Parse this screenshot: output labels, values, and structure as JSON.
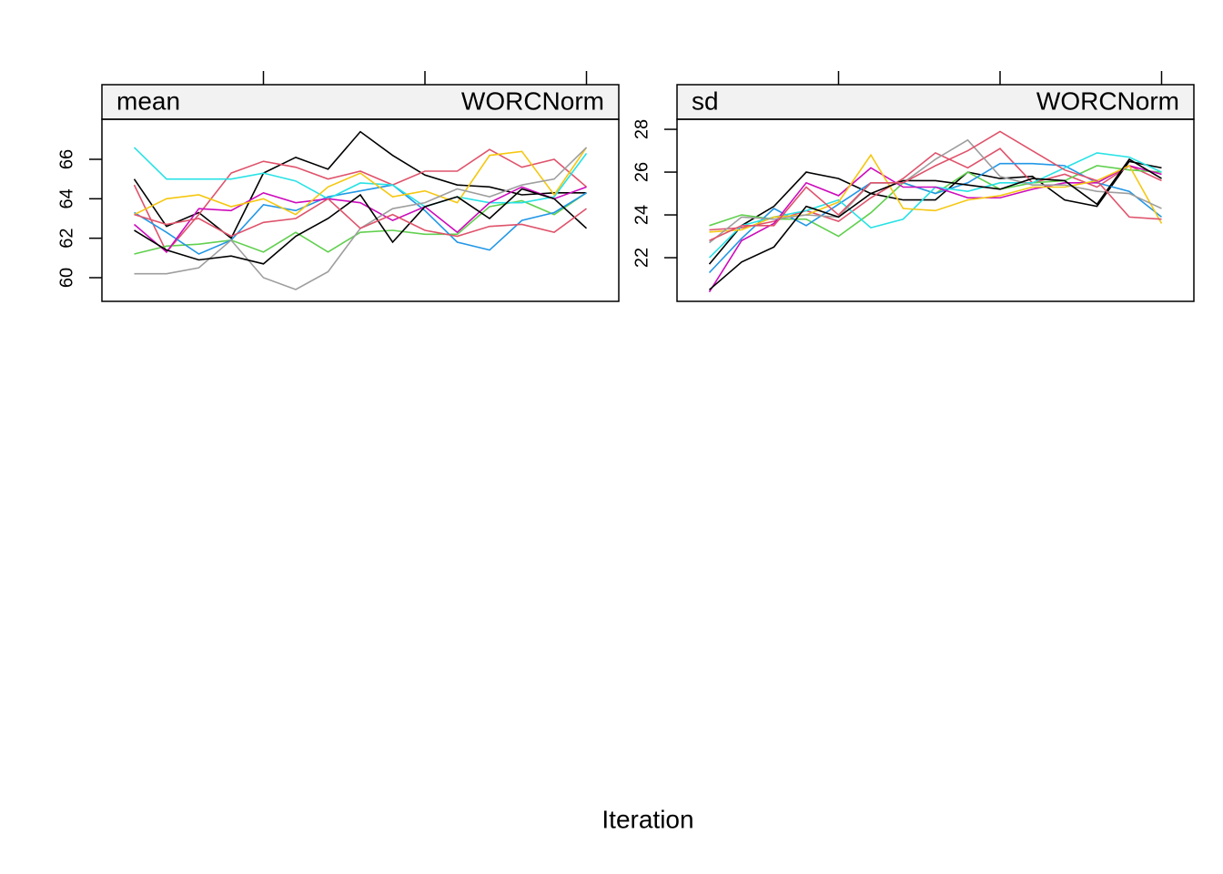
{
  "chart_data": [
    {
      "type": "line",
      "title": "mean",
      "subtitle": "WORCNorm",
      "xlabel": "Iteration",
      "x": [
        1,
        2,
        3,
        4,
        5,
        6,
        7,
        8,
        9,
        10,
        11,
        12,
        13,
        14,
        15
      ],
      "xlim": [
        0,
        16
      ],
      "xticks": [
        5,
        10,
        15
      ],
      "ylim": [
        58.8,
        68.03
      ],
      "yticks": [
        60,
        62,
        64,
        66
      ],
      "series": [
        {
          "color": "#000000",
          "values": [
            65.0,
            62.6,
            63.3,
            62.0,
            65.3,
            66.1,
            65.5,
            67.4,
            66.2,
            65.2,
            64.7,
            64.6,
            64.2,
            64.3,
            64.3
          ]
        },
        {
          "color": "#DF536B",
          "values": [
            64.7,
            61.3,
            63.2,
            65.3,
            65.9,
            65.6,
            65.0,
            65.4,
            64.7,
            65.4,
            65.4,
            66.5,
            65.6,
            66.0,
            64.6
          ]
        },
        {
          "color": "#61D04F",
          "values": [
            61.2,
            61.6,
            61.7,
            61.9,
            61.3,
            62.3,
            61.3,
            62.3,
            62.4,
            62.2,
            62.2,
            63.6,
            63.9,
            63.2,
            64.3
          ]
        },
        {
          "color": "#2297E6",
          "values": [
            63.3,
            62.3,
            61.2,
            61.9,
            63.7,
            63.4,
            64.1,
            64.4,
            64.7,
            63.4,
            61.8,
            61.4,
            62.9,
            63.3,
            64.3
          ]
        },
        {
          "color": "#28E2E5",
          "values": [
            66.6,
            65.0,
            65.0,
            65.0,
            65.3,
            64.9,
            64.0,
            64.8,
            64.7,
            63.6,
            64.1,
            63.8,
            63.8,
            64.1,
            66.3
          ]
        },
        {
          "color": "#CD0BBC",
          "values": [
            62.7,
            61.3,
            63.5,
            63.4,
            64.3,
            63.8,
            64.0,
            63.8,
            62.9,
            63.6,
            62.3,
            63.8,
            64.6,
            64.0,
            64.6
          ]
        },
        {
          "color": "#F5C710",
          "values": [
            63.2,
            64.0,
            64.2,
            63.6,
            64.0,
            63.2,
            64.6,
            65.3,
            64.1,
            64.4,
            63.8,
            66.2,
            66.4,
            64.2,
            66.6
          ]
        },
        {
          "color": "#9E9E9E",
          "values": [
            60.2,
            60.2,
            60.5,
            61.9,
            60.0,
            59.4,
            60.3,
            62.5,
            63.5,
            63.8,
            64.5,
            64.1,
            64.7,
            65.0,
            66.6
          ]
        },
        {
          "color": "#000000",
          "values": [
            62.4,
            61.4,
            60.9,
            61.1,
            60.7,
            62.1,
            63.0,
            64.2,
            61.8,
            63.6,
            64.1,
            63.0,
            64.5,
            64.0,
            62.5
          ]
        },
        {
          "color": "#DF536B",
          "values": [
            63.2,
            62.7,
            63.0,
            62.1,
            62.8,
            63.0,
            64.0,
            62.5,
            63.2,
            62.4,
            62.1,
            62.6,
            62.7,
            62.3,
            63.5
          ]
        }
      ]
    },
    {
      "type": "line",
      "title": "sd",
      "subtitle": "WORCNorm",
      "x": [
        1,
        2,
        3,
        4,
        5,
        6,
        7,
        8,
        9,
        10,
        11,
        12,
        13,
        14,
        15
      ],
      "xlim": [
        0,
        16
      ],
      "xticks": [
        5,
        10,
        15
      ],
      "ylim": [
        19.96,
        28.47
      ],
      "yticks": [
        22,
        24,
        26,
        28
      ],
      "series": [
        {
          "color": "#000000",
          "values": [
            21.7,
            23.5,
            24.4,
            26.0,
            25.7,
            25.0,
            24.7,
            24.7,
            26.0,
            25.7,
            25.8,
            24.7,
            24.4,
            26.5,
            26.2
          ]
        },
        {
          "color": "#DF536B",
          "values": [
            23.3,
            23.4,
            23.7,
            24.2,
            23.7,
            24.8,
            25.7,
            26.9,
            26.2,
            27.1,
            25.5,
            25.9,
            25.3,
            26.3,
            25.6
          ]
        },
        {
          "color": "#61D04F",
          "values": [
            23.5,
            24.0,
            23.8,
            23.8,
            23.0,
            24.1,
            25.5,
            25.0,
            26.0,
            25.2,
            25.5,
            25.6,
            26.3,
            26.1,
            26.0
          ]
        },
        {
          "color": "#2297E6",
          "values": [
            21.3,
            22.9,
            24.3,
            23.5,
            24.5,
            25.5,
            25.5,
            25.0,
            25.5,
            26.4,
            26.4,
            26.3,
            25.5,
            25.1,
            23.9
          ]
        },
        {
          "color": "#28E2E5",
          "values": [
            22.0,
            23.5,
            23.9,
            24.2,
            24.7,
            23.4,
            23.8,
            25.3,
            25.1,
            25.5,
            25.5,
            26.2,
            26.9,
            26.7,
            26.0
          ]
        },
        {
          "color": "#CD0BBC",
          "values": [
            20.4,
            22.8,
            23.6,
            25.5,
            24.9,
            26.2,
            25.3,
            25.3,
            24.8,
            24.8,
            25.2,
            25.5,
            25.5,
            26.3,
            25.9
          ]
        },
        {
          "color": "#F5C710",
          "values": [
            23.2,
            23.3,
            23.9,
            24.0,
            24.6,
            26.8,
            24.3,
            24.2,
            24.7,
            24.9,
            25.3,
            25.3,
            25.6,
            26.3,
            23.6
          ]
        },
        {
          "color": "#9E9E9E",
          "values": [
            22.7,
            23.9,
            23.8,
            24.0,
            23.9,
            25.5,
            25.5,
            26.6,
            27.5,
            25.8,
            25.4,
            25.4,
            25.1,
            25.0,
            24.3
          ]
        },
        {
          "color": "#000000",
          "values": [
            20.5,
            21.8,
            22.5,
            24.4,
            23.9,
            25.0,
            25.6,
            25.6,
            25.4,
            25.2,
            25.7,
            25.6,
            24.5,
            26.6,
            25.7
          ]
        },
        {
          "color": "#DF536B",
          "values": [
            22.8,
            23.5,
            23.5,
            25.3,
            24.0,
            25.5,
            25.5,
            26.3,
            27.0,
            27.9,
            27.0,
            26.1,
            25.6,
            23.9,
            23.8
          ]
        }
      ]
    }
  ]
}
